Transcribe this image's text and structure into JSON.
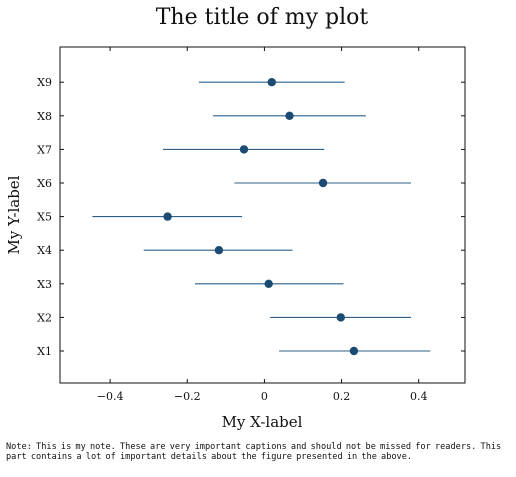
{
  "chart_data": {
    "type": "scatter",
    "subtype": "coefficient-plot-with-horizontal-error-bars",
    "title": "The title of my plot",
    "xlabel": "My X-label",
    "ylabel": "My Y-label",
    "xlim": [
      -0.53,
      0.52
    ],
    "xticks": [
      -0.4,
      -0.2,
      0,
      0.2,
      0.4
    ],
    "xtick_labels": [
      "−0.4",
      "−0.2",
      "0",
      "0.2",
      "0.4"
    ],
    "categories": [
      "X1",
      "X2",
      "X3",
      "X4",
      "X5",
      "X6",
      "X7",
      "X8",
      "X9"
    ],
    "estimates": [
      0.232,
      0.198,
      0.011,
      -0.118,
      -0.251,
      0.152,
      -0.053,
      0.065,
      0.019
    ],
    "ci_lower": [
      0.038,
      0.015,
      -0.18,
      -0.313,
      -0.446,
      -0.078,
      -0.263,
      -0.133,
      -0.17
    ],
    "ci_upper": [
      0.43,
      0.38,
      0.205,
      0.073,
      -0.058,
      0.38,
      0.155,
      0.263,
      0.208
    ],
    "grid": false,
    "colors": {
      "point": "#1b4a72",
      "errorbar": "#2e5f86",
      "axis": "#111111"
    }
  },
  "note": "Note: This is my note. These are very important captions and should not be missed for readers. This part contains a lot of important details about the figure presented in the above."
}
